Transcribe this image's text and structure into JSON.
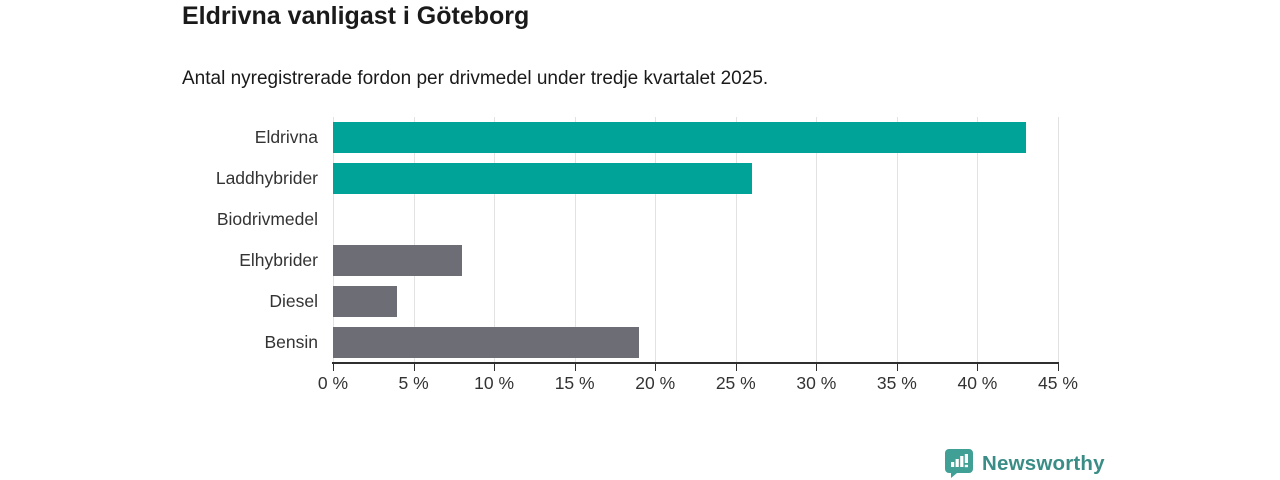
{
  "header": {
    "title": "Eldrivna vanligast i Göteborg",
    "subtitle": "Antal nyregistrerade fordon per drivmedel under tredje kvartalet 2025."
  },
  "chart_data": {
    "type": "bar",
    "orientation": "horizontal",
    "title": "Eldrivna vanligast i Göteborg",
    "subtitle": "Antal nyregistrerade fordon per drivmedel under tredje kvartalet 2025.",
    "categories": [
      "Eldrivna",
      "Laddhybrider",
      "Biodrivmedel",
      "Elhybrider",
      "Diesel",
      "Bensin"
    ],
    "values": [
      43,
      26,
      0,
      8,
      4,
      19
    ],
    "unit": "%",
    "bar_colors": [
      "#00a398",
      "#00a398",
      "#6d6d75",
      "#6d6d75",
      "#6d6d75",
      "#6d6d75"
    ],
    "xlim": [
      0,
      45
    ],
    "x_tick_step": 5,
    "x_tick_labels": [
      "0 %",
      "5 %",
      "10 %",
      "15 %",
      "20 %",
      "25 %",
      "30 %",
      "35 %",
      "40 %",
      "45 %"
    ],
    "xlabel": "",
    "ylabel": "",
    "grid": "vertical",
    "legend": "none",
    "palette": {
      "highlight": "#00a398",
      "default": "#6d6d75",
      "gridline": "#e2e2e2",
      "axis": "#2f2f2f"
    }
  },
  "footer": {
    "logo_text": "Newsworthy",
    "logo_text_color": "#3a8d86",
    "logo_icon": "bar-chart-speech-bubble-icon",
    "logo_icon_color": "#41a096"
  }
}
